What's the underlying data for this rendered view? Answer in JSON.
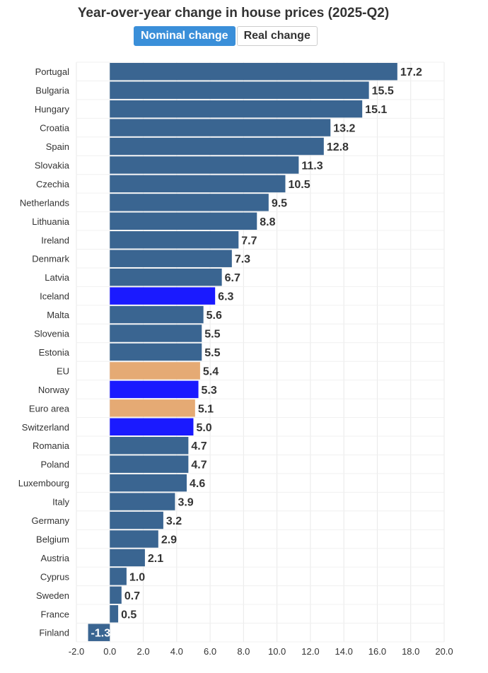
{
  "header": {
    "title": "Year-over-year change in house prices (2025-Q2)",
    "toggles": [
      {
        "label": "Nominal change",
        "active": true
      },
      {
        "label": "Real change",
        "active": false
      }
    ]
  },
  "colors": {
    "default": "#3a6591",
    "highlight": "#1a1aff",
    "aggregate": "#e5aa74",
    "toggle_active": "#3a8fd9"
  },
  "chart_data": {
    "type": "bar",
    "orientation": "horizontal",
    "categories": [
      "Portugal",
      "Bulgaria",
      "Hungary",
      "Croatia",
      "Spain",
      "Slovakia",
      "Czechia",
      "Netherlands",
      "Lithuania",
      "Ireland",
      "Denmark",
      "Latvia",
      "Iceland",
      "Malta",
      "Slovenia",
      "Estonia",
      "EU",
      "Norway",
      "Euro area",
      "Switzerland",
      "Romania",
      "Poland",
      "Luxembourg",
      "Italy",
      "Germany",
      "Belgium",
      "Austria",
      "Cyprus",
      "Sweden",
      "France",
      "Finland"
    ],
    "values": [
      17.2,
      15.5,
      15.1,
      13.2,
      12.8,
      11.3,
      10.5,
      9.5,
      8.8,
      7.7,
      7.3,
      6.7,
      6.3,
      5.6,
      5.5,
      5.5,
      5.4,
      5.3,
      5.1,
      5.0,
      4.7,
      4.7,
      4.6,
      3.9,
      3.2,
      2.9,
      2.1,
      1.0,
      0.7,
      0.5,
      -1.3
    ],
    "value_labels": [
      "17.2",
      "15.5",
      "15.1",
      "13.2",
      "12.8",
      "11.3",
      "10.5",
      "9.5",
      "8.8",
      "7.7",
      "7.3",
      "6.7",
      "6.3",
      "5.6",
      "5.5",
      "5.5",
      "5.4",
      "5.3",
      "5.1",
      "5.0",
      "4.7",
      "4.7",
      "4.6",
      "3.9",
      "3.2",
      "2.9",
      "2.1",
      "1.0",
      "0.7",
      "0.5",
      "-1.3"
    ],
    "bar_colors": [
      "default",
      "default",
      "default",
      "default",
      "default",
      "default",
      "default",
      "default",
      "default",
      "default",
      "default",
      "default",
      "highlight",
      "default",
      "default",
      "default",
      "aggregate",
      "highlight",
      "aggregate",
      "highlight",
      "default",
      "default",
      "default",
      "default",
      "default",
      "default",
      "default",
      "default",
      "default",
      "default",
      "default"
    ],
    "xlim": [
      -2.0,
      20.0
    ],
    "xticks": [
      "-2.0",
      "0.0",
      "2.0",
      "4.0",
      "6.0",
      "8.0",
      "10.0",
      "12.0",
      "14.0",
      "16.0",
      "18.0",
      "20.0"
    ],
    "grid": true,
    "legend": "none"
  }
}
